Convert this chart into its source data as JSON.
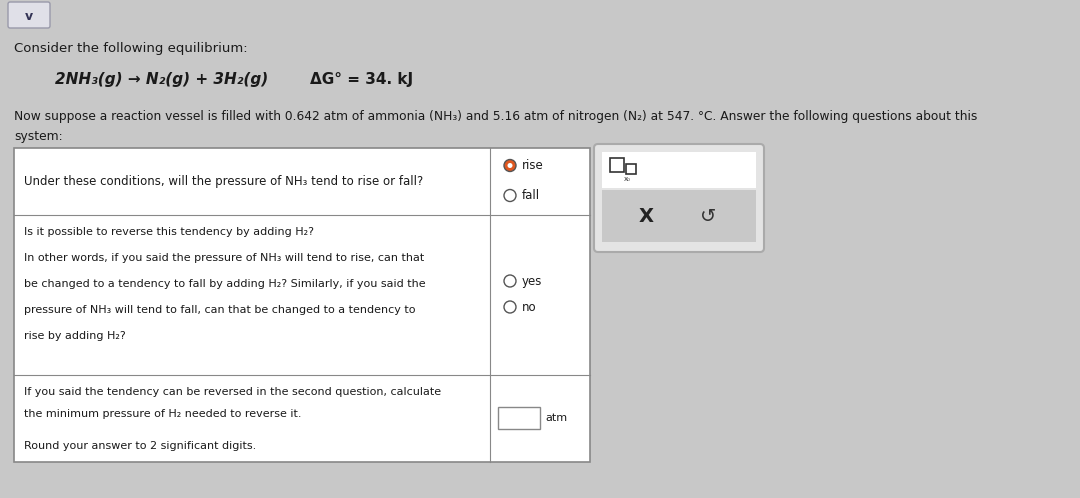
{
  "bg_color": "#c8c8c8",
  "title_line1": "Consider the following equilibrium:",
  "equation_text": "2NH₃(g) → N₂(g) + 3H₂(g)",
  "delta_g_text": "ΔG° = 34. kJ",
  "intro_line1": "Now suppose a reaction vessel is filled with 0.642 atm of ammonia (NH₃) and 5.16 atm of nitrogen (N₂) at 547. °C. Answer the following questions about this",
  "intro_line2": "system:",
  "row1_question": "Under these conditions, will the pressure of NH₃ tend to rise or fall?",
  "row1_options": [
    "rise",
    "fall"
  ],
  "row2_question_lines": [
    "Is it possible to reverse this tendency by adding H₂?",
    "In other words, if you said the pressure of NH₃ will tend to rise, can that",
    "be changed to a tendency to fall by adding H₂? Similarly, if you said the",
    "pressure of NH₃ will tend to fall, can that be changed to a tendency to",
    "rise by adding H₂?"
  ],
  "row2_options": [
    "yes",
    "no"
  ],
  "row3_question_lines": [
    "If you said the tendency can be reversed in the second question, calculate",
    "the minimum pressure of H₂ needed to reverse it.",
    "Round your answer to 2 significant digits."
  ],
  "row3_unit": "atm",
  "text_color": "#1a1a1a",
  "selected_radio": "rise"
}
